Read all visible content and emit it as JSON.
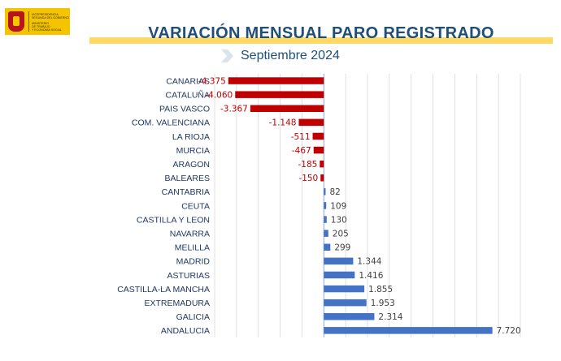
{
  "logo": {
    "line1": "VICEPRESIDENCIA\nSEGUNDA DEL GOBIERNO",
    "line2": "MINISTERIO\nDE TRABAJO\nY ECONOMÍA SOCIAL"
  },
  "colors": {
    "negative": "#c00000",
    "positive": "#4472c4",
    "title": "#1f4e79",
    "title_bar": "#ffd966"
  },
  "chart_data": {
    "type": "bar",
    "orientation": "horizontal",
    "title": "VARIACIÓN MENSUAL PARO REGISTRADO",
    "subtitle": "Septiembre 2024",
    "categories": [
      "CANARIAS",
      "CATALUÑA",
      "PAIS VASCO",
      "COM. VALENCIANA",
      "LA RIOJA",
      "MURCIA",
      "ARAGON",
      "BALEARES",
      "CANTABRIA",
      "CEUTA",
      "CASTILLA Y LEON",
      "NAVARRA",
      "MELILLA",
      "MADRID",
      "ASTURIAS",
      "CASTILLA-LA MANCHA",
      "EXTREMADURA",
      "GALICIA",
      "ANDALUCIA"
    ],
    "values": [
      -4375,
      -4060,
      -3367,
      -1148,
      -511,
      -467,
      -185,
      -150,
      82,
      109,
      130,
      205,
      299,
      1344,
      1416,
      1855,
      1953,
      2314,
      7720
    ],
    "labels": [
      "-4.375",
      "-4.060",
      "-3.367",
      "-1.148",
      "-511",
      "-467",
      "-185",
      "-150",
      "82",
      "109",
      "130",
      "205",
      "299",
      "1.344",
      "1.416",
      "1.855",
      "1.953",
      "2.314",
      "7.720"
    ],
    "xlim": [
      -5000,
      9000
    ],
    "gridlines": true,
    "legend": false
  }
}
